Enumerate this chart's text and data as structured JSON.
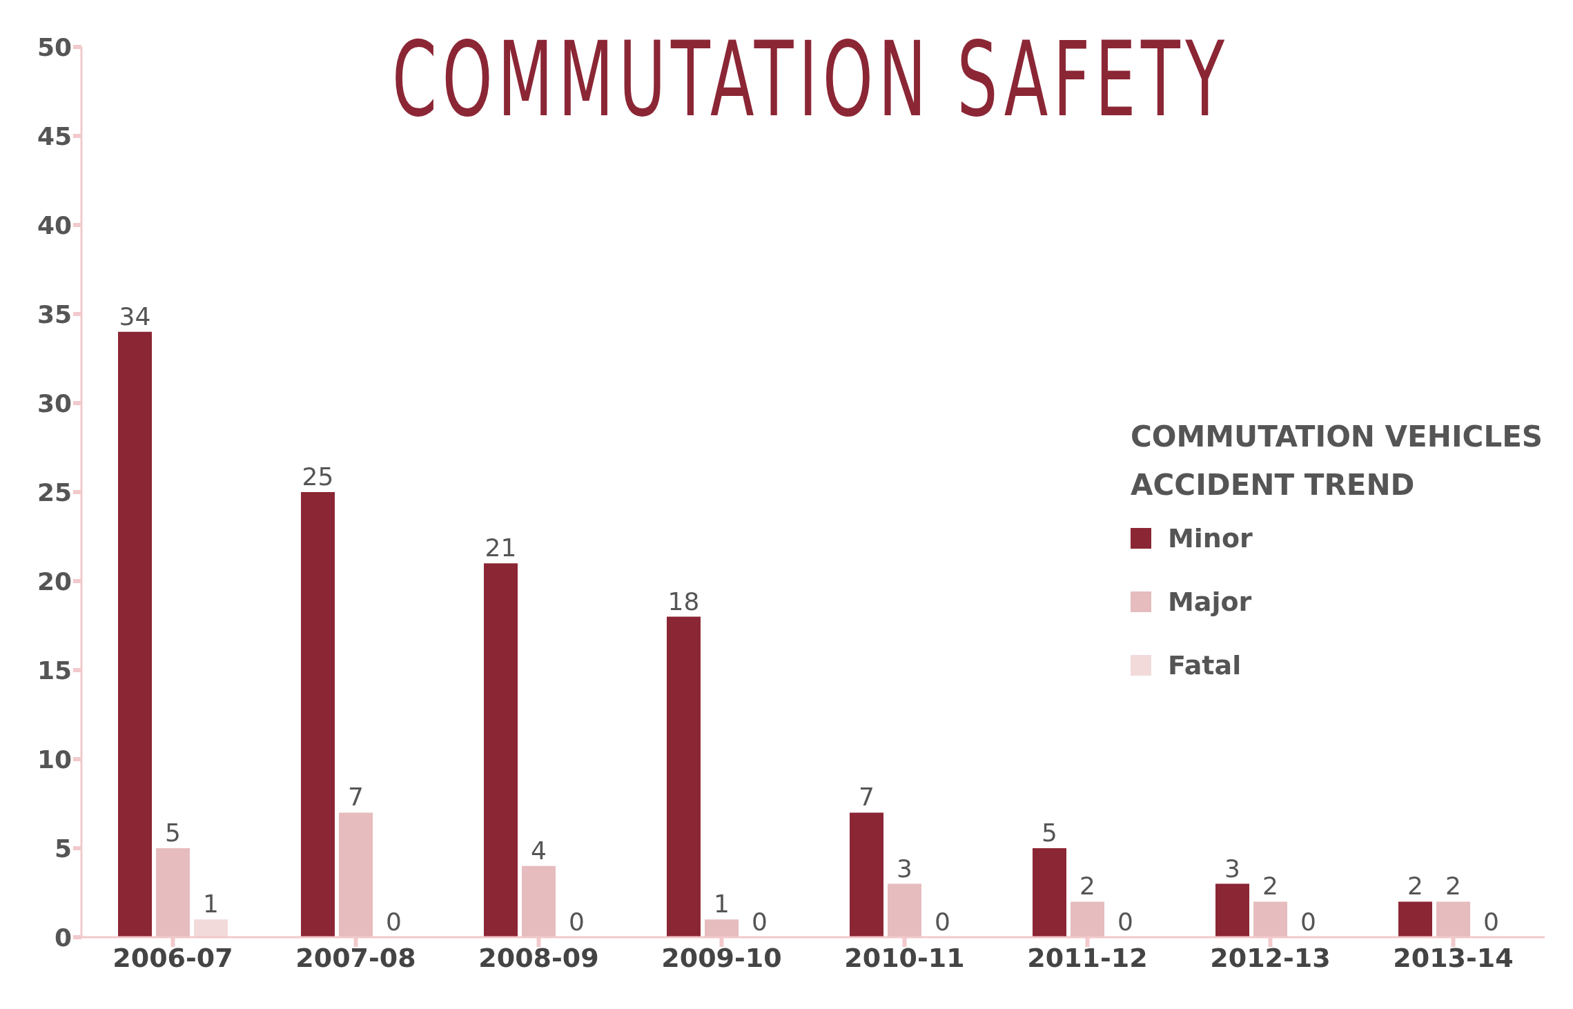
{
  "chart_data": {
    "type": "bar",
    "title": "COMMUTATION SAFETY",
    "legend_title": "COMMUTATION VEHICLES ACCIDENT TREND",
    "categories": [
      "2006-07",
      "2007-08",
      "2008-09",
      "2009-10",
      "2010-11",
      "2011-12",
      "2012-13",
      "2013-14"
    ],
    "series": [
      {
        "name": "Minor",
        "color": "#8b2635",
        "values": [
          34,
          25,
          21,
          18,
          7,
          5,
          3,
          2
        ]
      },
      {
        "name": "Major",
        "color": "#e6bcbe",
        "values": [
          5,
          7,
          4,
          1,
          3,
          2,
          2,
          2
        ]
      },
      {
        "name": "Fatal",
        "color": "#f2dadb",
        "values": [
          1,
          0,
          0,
          0,
          0,
          0,
          0,
          0
        ]
      }
    ],
    "ylim": [
      0,
      50
    ],
    "yticks": [
      0,
      5,
      10,
      15,
      20,
      25,
      30,
      35,
      40,
      45,
      50
    ],
    "grid": false,
    "legend": "right",
    "data_labels": true
  }
}
